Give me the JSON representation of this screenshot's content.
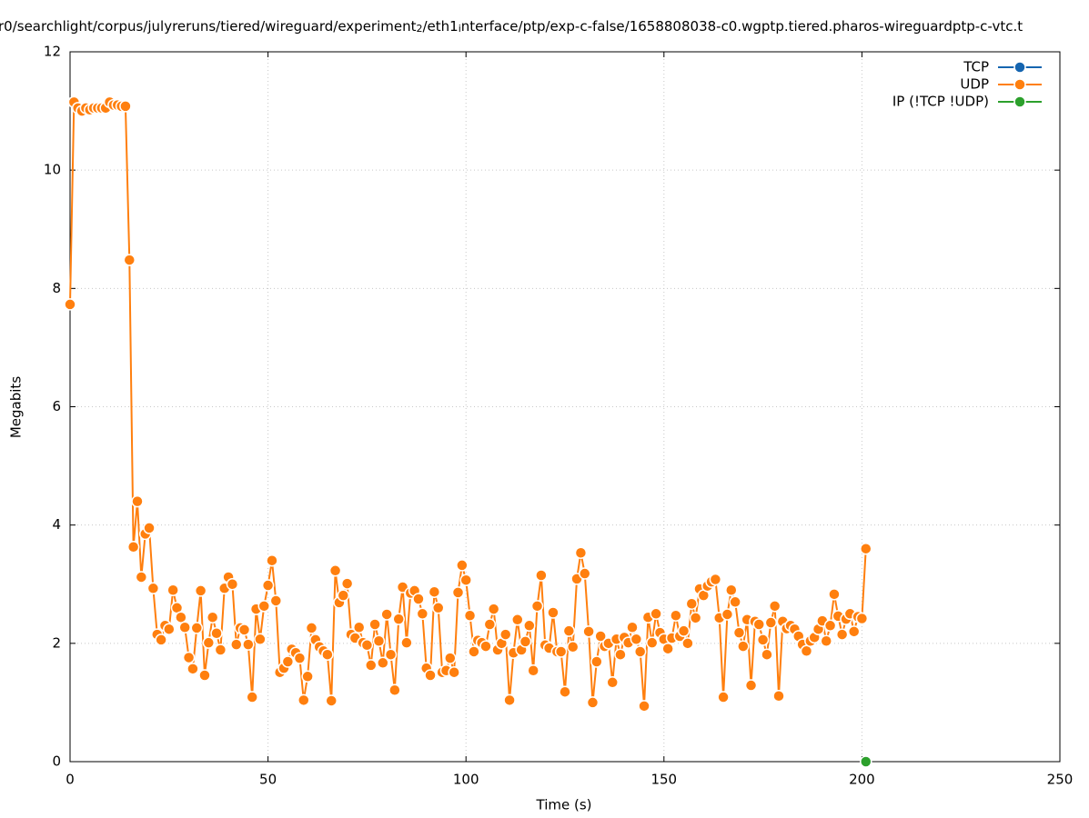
{
  "chart_data": {
    "type": "line",
    "title_segments": [
      {
        "text": "r0/searchlight/corpus/julyreruns/tiered/wireguard/experiment",
        "subscript": false
      },
      {
        "text": "2",
        "subscript": true
      },
      {
        "text": "/eth1",
        "subscript": false
      },
      {
        "text": "i",
        "subscript": true
      },
      {
        "text": "nterface/ptp/exp-c-false/1658808038-c0.wgptp.tiered.pharos-wireguardptp-c-vtc.t",
        "subscript": false
      }
    ],
    "x_label": "Time (s)",
    "y_label": "Megabits",
    "xlim": [
      0,
      250
    ],
    "xticks": [
      0,
      50,
      100,
      150,
      200,
      250
    ],
    "ylim": [
      0,
      12
    ],
    "yticks": [
      0,
      2,
      4,
      6,
      8,
      10,
      12
    ],
    "grid": true,
    "legend": "top-right",
    "series": [
      {
        "name": "TCP",
        "color": "#1565b0",
        "x": [],
        "values": []
      },
      {
        "name": "UDP",
        "color": "#ff7f0e",
        "x": [
          0,
          1,
          2,
          3,
          4,
          5,
          6,
          7,
          8,
          9,
          10,
          11,
          12,
          13,
          14,
          15,
          16,
          17,
          18,
          19,
          20,
          21,
          22,
          23,
          24,
          25,
          26,
          27,
          28,
          29,
          30,
          31,
          32,
          33,
          34,
          35,
          36,
          37,
          38,
          39,
          40,
          41,
          42,
          43,
          44,
          45,
          46,
          47,
          48,
          49,
          50,
          51,
          52,
          53,
          54,
          55,
          56,
          57,
          58,
          59,
          60,
          61,
          62,
          63,
          64,
          65,
          66,
          67,
          68,
          69,
          70,
          71,
          72,
          73,
          74,
          75,
          76,
          77,
          78,
          79,
          80,
          81,
          82,
          83,
          84,
          85,
          86,
          87,
          88,
          89,
          90,
          91,
          92,
          93,
          94,
          95,
          96,
          97,
          98,
          99,
          100,
          101,
          102,
          103,
          104,
          105,
          106,
          107,
          108,
          109,
          110,
          111,
          112,
          113,
          114,
          115,
          116,
          117,
          118,
          119,
          120,
          121,
          122,
          123,
          124,
          125,
          126,
          127,
          128,
          129,
          130,
          131,
          132,
          133,
          134,
          135,
          136,
          137,
          138,
          139,
          140,
          141,
          142,
          143,
          144,
          145,
          146,
          147,
          148,
          149,
          150,
          151,
          152,
          153,
          154,
          155,
          156,
          157,
          158,
          159,
          160,
          161,
          162,
          163,
          164,
          165,
          166,
          167,
          168,
          169,
          170,
          171,
          172,
          173,
          174,
          175,
          176,
          177,
          178,
          179,
          180,
          181,
          182,
          183,
          184,
          185,
          186,
          187,
          188,
          189,
          190,
          191,
          192,
          193,
          194,
          195,
          196,
          197,
          198,
          199,
          200,
          201
        ],
        "values": [
          7.73,
          11.15,
          11.05,
          11.0,
          11.05,
          11.02,
          11.05,
          11.05,
          11.05,
          11.05,
          11.15,
          11.1,
          11.1,
          11.08,
          11.08,
          8.48,
          3.63,
          4.4,
          3.12,
          3.85,
          3.95,
          2.93,
          2.15,
          2.06,
          2.3,
          2.24,
          2.9,
          2.6,
          2.44,
          2.27,
          1.76,
          1.57,
          2.26,
          2.89,
          1.46,
          2.01,
          2.44,
          2.17,
          1.89,
          2.93,
          3.12,
          3.0,
          1.98,
          2.26,
          2.23,
          1.98,
          1.09,
          2.58,
          2.07,
          2.63,
          2.98,
          3.4,
          2.72,
          1.51,
          1.58,
          1.69,
          1.9,
          1.84,
          1.75,
          1.04,
          1.44,
          2.26,
          2.06,
          1.94,
          1.87,
          1.81,
          1.03,
          3.23,
          2.69,
          2.81,
          3.01,
          2.15,
          2.09,
          2.27,
          2.01,
          1.97,
          1.63,
          2.32,
          2.04,
          1.67,
          2.49,
          1.81,
          1.21,
          2.41,
          2.95,
          2.01,
          2.85,
          2.89,
          2.75,
          2.5,
          1.58,
          1.46,
          2.87,
          2.6,
          1.51,
          1.54,
          1.75,
          1.51,
          2.86,
          3.32,
          3.07,
          2.47,
          1.86,
          2.05,
          2.01,
          1.95,
          2.32,
          2.58,
          1.89,
          2.0,
          2.15,
          1.04,
          1.84,
          2.4,
          1.89,
          2.03,
          2.3,
          1.54,
          2.63,
          3.15,
          1.97,
          1.92,
          2.52,
          1.86,
          1.86,
          1.18,
          2.21,
          1.94,
          3.09,
          3.53,
          3.18,
          2.2,
          1.0,
          1.69,
          2.12,
          1.95,
          2.0,
          1.34,
          2.07,
          1.81,
          2.1,
          2.01,
          2.27,
          2.07,
          1.86,
          0.94,
          2.44,
          2.01,
          2.5,
          2.18,
          2.07,
          1.91,
          2.09,
          2.47,
          2.12,
          2.21,
          2.0,
          2.67,
          2.43,
          2.92,
          2.81,
          2.97,
          3.04,
          3.08,
          2.43,
          1.09,
          2.49,
          2.9,
          2.7,
          2.18,
          1.95,
          2.4,
          1.29,
          2.37,
          2.32,
          2.06,
          1.81,
          2.35,
          2.63,
          1.11,
          2.37,
          2.25,
          2.3,
          2.24,
          2.12,
          1.98,
          1.87,
          2.04,
          2.1,
          2.24,
          2.38,
          2.04,
          2.3,
          2.83,
          2.46,
          2.15,
          2.41,
          2.5,
          2.2,
          2.45,
          2.42,
          3.6
        ]
      },
      {
        "name": "IP (!TCP  !UDP)",
        "color": "#2ca02c",
        "x": [
          201
        ],
        "values": [
          0
        ]
      }
    ]
  }
}
